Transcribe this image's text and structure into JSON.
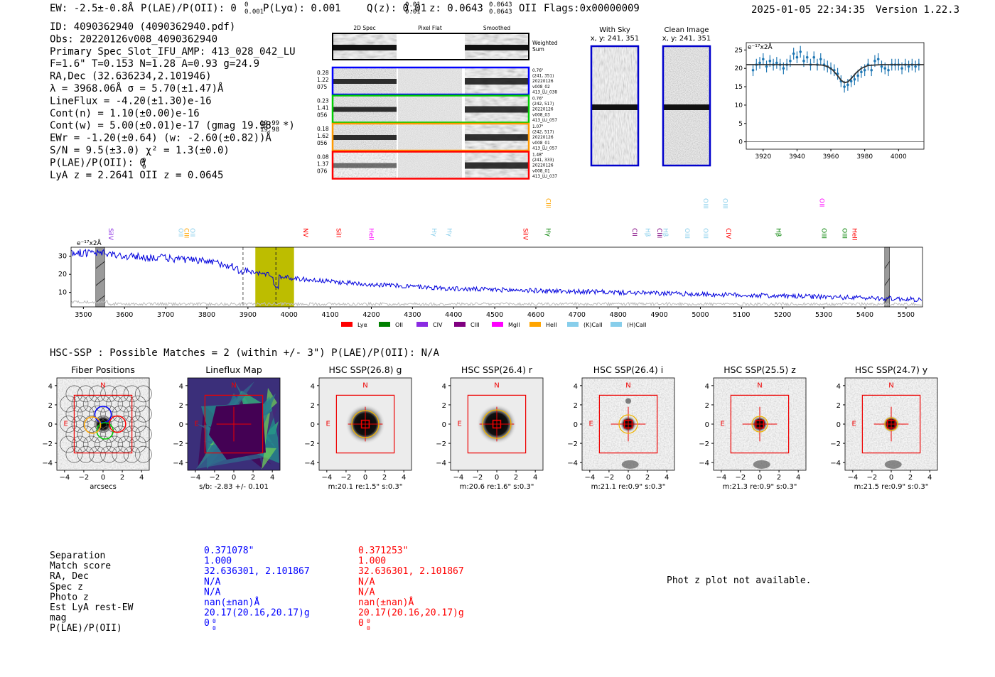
{
  "header": {
    "ew": "EW: -2.5±-0.8Å",
    "plae": "P(LAE)/P(OII): 0",
    "plae_sup": "0",
    "plae_sub": "0.001",
    "plya": "P(Lyα): 0.001",
    "qz": "Q(z): 0.01",
    "qz_sup": "0.01",
    "qz_sub": "0.01",
    "z": "z: 0.0643",
    "z_sup": "0.0643",
    "z_sub": "0.0643",
    "z_line": "OII",
    "flags": "Flags:0x00000009",
    "datetime": "2025-01-05 22:34:35",
    "version": "Version 1.22.3"
  },
  "info": {
    "lines": [
      "ID: 4090362940 (4090362940.pdf)",
      "Obs: 20220126v008_4090362940",
      "Primary Spec_Slot_IFU_AMP: 413_028_042_LU",
      "F=1.6\"  T=0.153  N=1.28  A=0.93  g=24.9",
      "RA,Dec (32.636234,2.101946)",
      "λ = 3968.06Å  σ = 5.70(±1.47)Å",
      "LineFlux = -4.20(±1.30)e-16",
      "Cont(n) = 1.10(±0.00)e-16",
      "Cont(w) = 5.00(±0.01)e-17 (gmag 19.98",
      "EWr = -1.20(±0.64) (w: -2.60(±0.82))Å",
      "S/N = 9.5(±3.0)  χ² = 1.3(±0.0)",
      "P(LAE)/P(OII): 0",
      "LyA z = 2.2641  OII z = 0.0645"
    ],
    "gmag_sup": "19.99",
    "gmag_sub": "19.98",
    "gmag_tail": "*)",
    "plae_sup": "0",
    "plae_sub": "0"
  },
  "cutouts": {
    "col_titles": [
      "2D Spec",
      "Pixel Flat",
      "Smoothed"
    ],
    "weighted_label": [
      "Weighted",
      "Sum"
    ],
    "rows": [
      {
        "left": [
          "0.28",
          "1.22",
          "075"
        ],
        "right": [
          "0.76\"",
          "(241, 351)",
          "20220126",
          "v008_02",
          "413_LU_038"
        ],
        "color": "#0000ff"
      },
      {
        "left": [
          "0.23",
          "1.41",
          "056"
        ],
        "right": [
          "0.76\"",
          "(242, 517)",
          "20220126",
          "v008_03",
          "413_LU_057"
        ],
        "color": "#00cc00"
      },
      {
        "left": [
          "0.18",
          "1.62",
          "056"
        ],
        "right": [
          "1.07\"",
          "(242, 517)",
          "20220126",
          "v008_01",
          "413_LU_057"
        ],
        "color": "#ff9900"
      },
      {
        "left": [
          "0.08",
          "1.37",
          "076"
        ],
        "right": [
          "1.48\"",
          "(241, 333)",
          "20220126",
          "v008_01",
          "413_LU_037"
        ],
        "color": "#ff0000"
      }
    ],
    "with_sky_title": "With Sky",
    "with_sky_xy": "x, y: 241, 351",
    "clean_title": "Clean Image",
    "clean_xy": "x, y: 241, 351"
  },
  "zoom_chart": {
    "type": "scatter",
    "unit_label": "e⁻¹⁷x2Å",
    "xlim": [
      3910,
      4015
    ],
    "ylim": [
      -2,
      27
    ],
    "xticks": [
      "3920",
      "3940",
      "3960",
      "3980",
      "4000"
    ],
    "yticks": [
      "0",
      "5",
      "10",
      "15",
      "20",
      "25"
    ],
    "x": [
      3914,
      3916,
      3918,
      3920,
      3922,
      3924,
      3926,
      3928,
      3930,
      3932,
      3934,
      3936,
      3938,
      3940,
      3942,
      3944,
      3946,
      3948,
      3950,
      3952,
      3954,
      3956,
      3958,
      3960,
      3962,
      3964,
      3966,
      3968,
      3970,
      3972,
      3974,
      3976,
      3978,
      3980,
      3982,
      3984,
      3986,
      3988,
      3990,
      3992,
      3994,
      3996,
      3998,
      4000,
      4002,
      4004,
      4006,
      4008,
      4010,
      4012
    ],
    "y": [
      19.5,
      21,
      21.5,
      22.5,
      20.5,
      22,
      21,
      21.5,
      21,
      20,
      21,
      22,
      24,
      23,
      24.5,
      22,
      23,
      21,
      23,
      21,
      22.5,
      21,
      20.5,
      20,
      19.5,
      18.5,
      16.5,
      15,
      15.5,
      16.5,
      17,
      18,
      19,
      19.5,
      21,
      19.5,
      22,
      22.5,
      20.5,
      20,
      19.5,
      21,
      21,
      21,
      20,
      21,
      20.5,
      21,
      20.5,
      21
    ],
    "fit_x": [
      3910,
      3920,
      3940,
      3950,
      3955,
      3958,
      3961,
      3964,
      3966,
      3968,
      3970,
      3972,
      3975,
      3978,
      3982,
      3990,
      4000,
      4015
    ],
    "fit_y": [
      21,
      21,
      21,
      21,
      20.9,
      20.5,
      19.6,
      18,
      16.8,
      16.1,
      16.3,
      17.2,
      18.8,
      20,
      20.8,
      21,
      21,
      21
    ],
    "color": "#1f77b4"
  },
  "spectrum": {
    "type": "line",
    "unit_label": "e⁻¹⁷x2Å",
    "xlim": [
      3470,
      5540
    ],
    "ylim": [
      2,
      35
    ],
    "xticks": [
      "3500",
      "3600",
      "3700",
      "3800",
      "3900",
      "4000",
      "4100",
      "4200",
      "4300",
      "4400",
      "4500",
      "4600",
      "4700",
      "4800",
      "4900",
      "5000",
      "5100",
      "5200",
      "5300",
      "5400",
      "5500"
    ],
    "yticks": [
      "10",
      "20",
      "30"
    ],
    "series_color": "#0000dd",
    "line_center": 3968,
    "highlight_range": [
      3918,
      4012
    ],
    "dashed_marker": 3888,
    "masked": [
      [
        3530,
        3552
      ],
      [
        5448,
        5460
      ]
    ],
    "anchors_x": [
      3470,
      3550,
      3600,
      3700,
      3800,
      3860,
      3880,
      3900,
      3950,
      4000,
      4100,
      4200,
      4400,
      4600,
      4800,
      5000,
      5200,
      5400,
      5540
    ],
    "anchors_y": [
      32,
      31.5,
      30,
      29,
      27,
      25,
      22,
      21.5,
      20,
      18,
      16,
      14.5,
      12,
      11,
      10,
      9,
      8,
      7,
      6
    ],
    "line_labels": [
      {
        "text": "SiIV",
        "x": 3556,
        "color": "#8a2be2",
        "row": 1
      },
      {
        "text": "OII",
        "x": 3727,
        "color": "#87ceeb",
        "row": 1
      },
      {
        "text": "CIII",
        "x": 3740,
        "color": "#ffa500",
        "row": 1
      },
      {
        "text": "OII",
        "x": 3755,
        "color": "#87ceeb",
        "row": 1
      },
      {
        "text": "NV",
        "x": 4030,
        "color": "#ff0000",
        "row": 1
      },
      {
        "text": "SiII",
        "x": 4110,
        "color": "#ff0000",
        "row": 1
      },
      {
        "text": "HeII",
        "x": 4190,
        "color": "#ff00ff",
        "row": 1
      },
      {
        "text": "Hγ",
        "x": 4343,
        "color": "#87ceeb",
        "row": 1
      },
      {
        "text": "Hγ",
        "x": 4380,
        "color": "#87ceeb",
        "row": 1
      },
      {
        "text": "SiIV",
        "x": 4565,
        "color": "#ff0000",
        "row": 1
      },
      {
        "text": "Hγ",
        "x": 4620,
        "color": "#008000",
        "row": 1
      },
      {
        "text": "CIII",
        "x": 4620,
        "color": "#ffa500",
        "row": 0
      },
      {
        "text": "CII",
        "x": 4830,
        "color": "#800080",
        "row": 1
      },
      {
        "text": "Hβ",
        "x": 4862,
        "color": "#87ceeb",
        "row": 1
      },
      {
        "text": "CIII",
        "x": 4890,
        "color": "#800080",
        "row": 1
      },
      {
        "text": "Hβ",
        "x": 4905,
        "color": "#87ceeb",
        "row": 1
      },
      {
        "text": "OIII",
        "x": 4958,
        "color": "#87ceeb",
        "row": 1
      },
      {
        "text": "OIII",
        "x": 5003,
        "color": "#87ceeb",
        "row": 1
      },
      {
        "text": "OIII",
        "x": 5003,
        "color": "#87ceeb",
        "row": 0
      },
      {
        "text": "CIV",
        "x": 5058,
        "color": "#ff0000",
        "row": 1
      },
      {
        "text": "OIII",
        "x": 5050,
        "color": "#87ceeb",
        "row": 0
      },
      {
        "text": "Hβ",
        "x": 5180,
        "color": "#008000",
        "row": 1
      },
      {
        "text": "OII",
        "x": 5285,
        "color": "#ff00ff",
        "row": 0
      },
      {
        "text": "OIII",
        "x": 5290,
        "color": "#008000",
        "row": 1
      },
      {
        "text": "OIII",
        "x": 5340,
        "color": "#008000",
        "row": 1
      },
      {
        "text": "HeII",
        "x": 5365,
        "color": "#ff0000",
        "row": 1
      }
    ],
    "legend": [
      {
        "label": "Lyα",
        "color": "#ff0000"
      },
      {
        "label": "OII",
        "color": "#008000"
      },
      {
        "label": "CIV",
        "color": "#8a2be2"
      },
      {
        "label": "CIII",
        "color": "#800080"
      },
      {
        "label": "MgII",
        "color": "#ff00ff"
      },
      {
        "label": "HeII",
        "color": "#ffa500"
      },
      {
        "label": "(K)CaII",
        "color": "#87ceeb"
      },
      {
        "label": "(H)CaII",
        "color": "#87ceeb"
      }
    ]
  },
  "hsc": {
    "title": "HSC-SSP : Possible Matches = 2 (within +/- 3\")  P(LAE)/P(OII): N/A",
    "ticks": [
      "−4",
      "−2",
      "0",
      "2",
      "4"
    ],
    "compass_n": "N",
    "compass_e": "E",
    "panels": [
      {
        "title": "Fiber Positions",
        "caption": "arcsecs",
        "kind": "fiber"
      },
      {
        "title": "Lineflux Map",
        "caption": "s/b: -2.83 +/- 0.101",
        "kind": "lineflux"
      },
      {
        "title": "HSC SSP(26.8) g",
        "caption": "m:20.1  re:1.5\"  s:0.3\"",
        "kind": "smooth",
        "ring": 19
      },
      {
        "title": "HSC SSP(26.4) r",
        "caption": "m:20.6  re:1.6\"  s:0.3\"",
        "kind": "smooth",
        "ring": 20
      },
      {
        "title": "HSC SSP(26.4) i",
        "caption": "m:21.1  re:0.9\"  s:0.3\"",
        "kind": "noisy",
        "ring": 13
      },
      {
        "title": "HSC SSP(25.5) z",
        "caption": "m:21.3  re:0.9\"  s:0.3\"",
        "kind": "noisy",
        "ring": 11
      },
      {
        "title": "HSC SSP(24.7) y",
        "caption": "m:21.5  re:0.9\"  s:0.3\"",
        "kind": "noisy",
        "ring": 9
      }
    ]
  },
  "match_table": {
    "labels": [
      "Separation",
      "Match score",
      "RA, Dec",
      "Spec z",
      "Photo z",
      "Est LyA rest-EW",
      "mag",
      "P(LAE)/P(OII)"
    ],
    "col1_color": "#0000ff",
    "col2_color": "#ff0000",
    "col1": [
      "0.371078\"",
      "1.000",
      "32.636301, 2.101867",
      "N/A",
      "N/A",
      "nan(±nan)Å",
      "20.17(20.16,20.17)g",
      "0"
    ],
    "col2": [
      "0.371253\"",
      "1.000",
      "32.636301, 2.101867",
      "N/A",
      "N/A",
      "nan(±nan)Å",
      "20.17(20.16,20.17)g",
      "0"
    ],
    "plae_sup": "0",
    "plae_sub": "0",
    "photz_note": "Phot z plot not available."
  }
}
